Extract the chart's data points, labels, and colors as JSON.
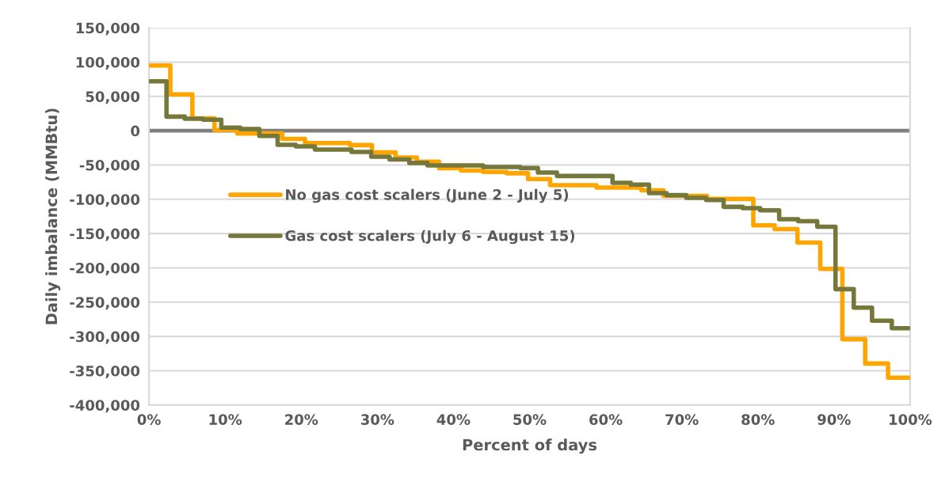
{
  "chart_data": {
    "type": "step",
    "xlabel": "Percent of days",
    "ylabel": "Daily imbalance (MMBtu)",
    "series": [
      {
        "name": "No gas cost scalers (June 2 - July 5)",
        "color": "#ffa500",
        "x": [
          0,
          2.8,
          5.7,
          8.6,
          11.6,
          17.5,
          20.5,
          26.4,
          29.3,
          32.4,
          35.2,
          38.1,
          41,
          43.9,
          47,
          49.8,
          52.7,
          58.8,
          64.7,
          67.6,
          73.3,
          79.4,
          82.2,
          85.2,
          88.2,
          91.1,
          94.1,
          97.1,
          100
        ],
        "values": [
          95000,
          53000,
          18000,
          1000,
          -4000,
          -12000,
          -18000,
          -21000,
          -31500,
          -39000,
          -45000,
          -54500,
          -58000,
          -60000,
          -62000,
          -70500,
          -79500,
          -83000,
          -87000,
          -95000,
          -99500,
          -138000,
          -143500,
          -163000,
          -201500,
          -304000,
          -339500,
          -360000,
          -360000
        ]
      },
      {
        "name": "Gas cost scalers (July 6 - August 15)",
        "color": "#76773a",
        "x": [
          0,
          2.3,
          4.7,
          7.1,
          9.5,
          12,
          14.5,
          16.9,
          19.3,
          21.8,
          26.6,
          29.2,
          31.6,
          34.2,
          36.6,
          43.9,
          48.8,
          51.1,
          53.6,
          60.9,
          63.3,
          65.7,
          68,
          70.6,
          73.2,
          75.5,
          78,
          80.3,
          82.8,
          85.3,
          87.8,
          90.2,
          92.6,
          95,
          97.6,
          100
        ],
        "values": [
          72000,
          20500,
          17500,
          16000,
          4500,
          2500,
          -7500,
          -20500,
          -23000,
          -27500,
          -31000,
          -38000,
          -42000,
          -47000,
          -50500,
          -53000,
          -54500,
          -61000,
          -66000,
          -76000,
          -78500,
          -91000,
          -94000,
          -98000,
          -101000,
          -111000,
          -113000,
          -116000,
          -129000,
          -132000,
          -140000,
          -231000,
          -258000,
          -277000,
          -288000,
          -288000
        ]
      }
    ],
    "xlim": [
      0,
      100
    ],
    "xticks": [
      {
        "value": 0,
        "label": "0%"
      },
      {
        "value": 10,
        "label": "10%"
      },
      {
        "value": 20,
        "label": "20%"
      },
      {
        "value": 30,
        "label": "30%"
      },
      {
        "value": 40,
        "label": "40%"
      },
      {
        "value": 50,
        "label": "50%"
      },
      {
        "value": 60,
        "label": "60%"
      },
      {
        "value": 70,
        "label": "70%"
      },
      {
        "value": 80,
        "label": "80%"
      },
      {
        "value": 90,
        "label": "90%"
      },
      {
        "value": 100,
        "label": "100%"
      }
    ],
    "ylim": [
      -400000,
      150000
    ],
    "yticks": [
      {
        "value": -400000,
        "label": "-400,000"
      },
      {
        "value": -350000,
        "label": "-350,000"
      },
      {
        "value": -300000,
        "label": "-300,000"
      },
      {
        "value": -250000,
        "label": "-250,000"
      },
      {
        "value": -200000,
        "label": "-200,000"
      },
      {
        "value": -150000,
        "label": "-150,000"
      },
      {
        "value": -100000,
        "label": "-100,000"
      },
      {
        "value": -50000,
        "label": "-50,000"
      },
      0,
      {
        "value": 50000,
        "label": "50,000"
      },
      {
        "value": 100000,
        "label": "100,000"
      },
      {
        "value": 150000,
        "label": "150,000"
      }
    ],
    "ref_lines": [
      {
        "axis": "y",
        "value": 0,
        "color": "#7f7f7f"
      }
    ],
    "grid": "y",
    "legend": "left",
    "line_style": "solid",
    "marker": "none"
  }
}
